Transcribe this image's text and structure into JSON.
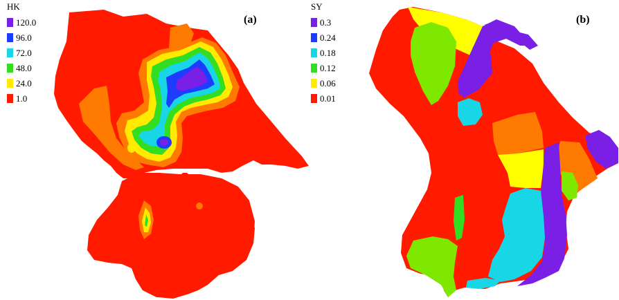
{
  "panels": [
    {
      "label": "(a)",
      "legend": {
        "title": "HK",
        "items": [
          {
            "label": "120.0",
            "color": "#7a1fe6"
          },
          {
            "label": "96.0",
            "color": "#1e3cff"
          },
          {
            "label": "72.0",
            "color": "#19d6e6"
          },
          {
            "label": "48.0",
            "color": "#33dd22"
          },
          {
            "label": "24.0",
            "color": "#ffea00"
          },
          {
            "label": "1.0",
            "color": "#ff1a00"
          }
        ]
      }
    },
    {
      "label": "(b)",
      "legend": {
        "title": "SY",
        "items": [
          {
            "label": "0.3",
            "color": "#7a1fe6"
          },
          {
            "label": "0.24",
            "color": "#1e3cff"
          },
          {
            "label": "0.18",
            "color": "#19d6e6"
          },
          {
            "label": "0.12",
            "color": "#33dd22"
          },
          {
            "label": "0.06",
            "color": "#ffea00"
          },
          {
            "label": "0.01",
            "color": "#ff1a00"
          }
        ]
      }
    }
  ],
  "palette": {
    "red": "#ff1a00",
    "orange": "#ff7a00",
    "yellow": "#ffff00",
    "lime": "#7fe800",
    "green": "#33dd22",
    "cyan": "#19d6e6",
    "blue": "#1e3cff",
    "violet": "#7a1fe6"
  }
}
